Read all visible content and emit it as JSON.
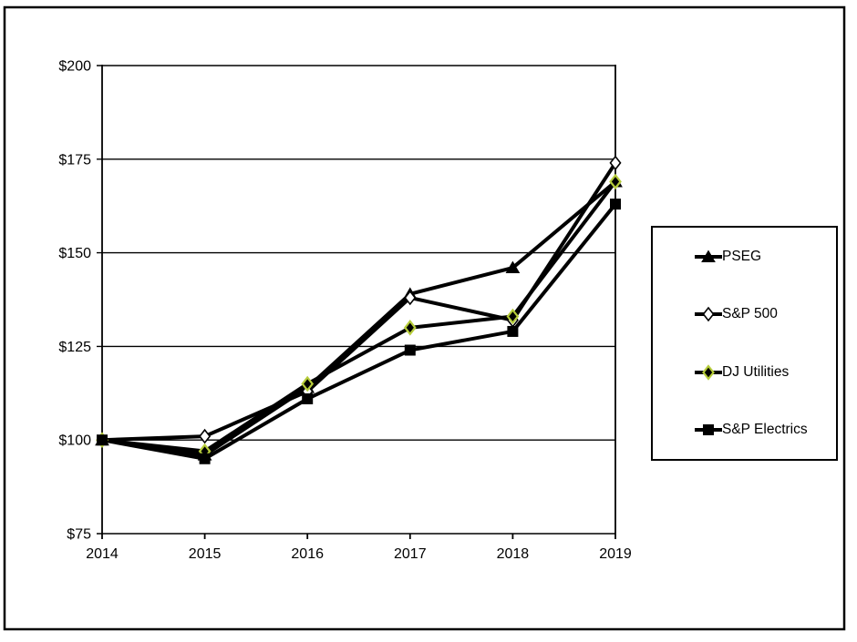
{
  "chart_data": {
    "type": "line",
    "title": "",
    "xlabel": "",
    "ylabel": "",
    "x": [
      2014,
      2015,
      2016,
      2017,
      2018,
      2019
    ],
    "x_tick_labels": [
      "2014",
      "2015",
      "2016",
      "2017",
      "2018",
      "2019"
    ],
    "ylim": [
      75,
      200
    ],
    "y_ticks": [
      75,
      100,
      125,
      150,
      175,
      200
    ],
    "y_tick_labels": [
      "$75",
      "$100",
      "$125",
      "$150",
      "$175",
      "$200"
    ],
    "grid": "horizontal",
    "legend_position": "right-outside",
    "series": [
      {
        "name": "PSEG",
        "marker": "triangle",
        "line_color": "#000000",
        "marker_fill": "#000000",
        "marker_stroke": "#000000",
        "values": [
          100,
          96,
          114,
          139,
          146,
          169
        ]
      },
      {
        "name": "S&P 500",
        "marker": "diamond-open",
        "line_color": "#000000",
        "marker_fill": "#ffffff",
        "marker_stroke": "#000000",
        "values": [
          100,
          101,
          113,
          138,
          132,
          174
        ]
      },
      {
        "name": "DJ Utilities",
        "marker": "diamond",
        "line_color": "#000000",
        "marker_fill": "#000000",
        "marker_stroke": "#b6cc3a",
        "values": [
          100,
          97,
          115,
          130,
          133,
          169
        ]
      },
      {
        "name": "S&P Electrics",
        "marker": "square",
        "line_color": "#000000",
        "marker_fill": "#000000",
        "marker_stroke": "#000000",
        "values": [
          100,
          95,
          111,
          124,
          129,
          163
        ]
      }
    ]
  },
  "colors": {
    "background": "#ffffff",
    "frame": "#000000",
    "axis": "#000000",
    "gridline": "#000000",
    "dj_utilities_accent": "#b6cc3a"
  }
}
